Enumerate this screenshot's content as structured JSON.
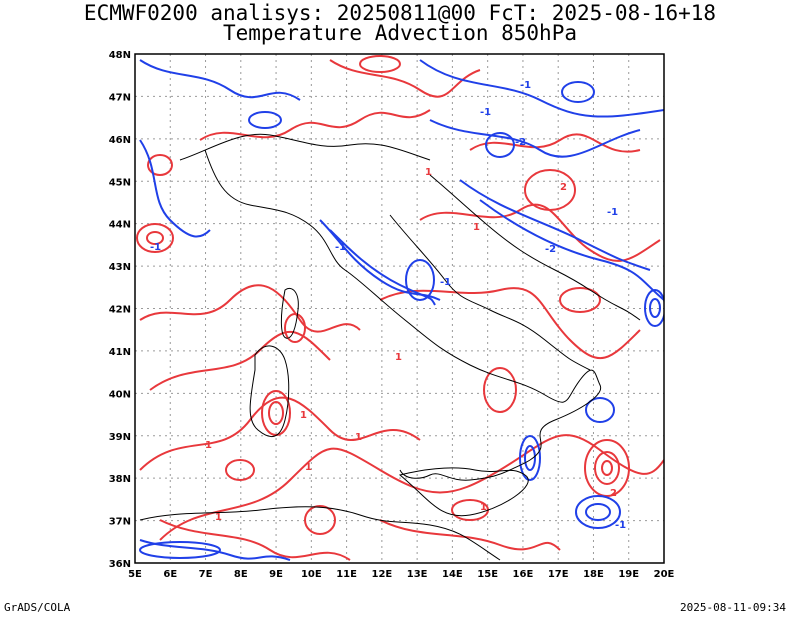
{
  "title_line_1": "ECMWF0200 analisys: 20250811@00 FcT: 2025-08-16+18",
  "title_line_2": "Temperature Advection 850hPa",
  "footer_left": "GrADS/COLA",
  "footer_right": "2025-08-11-09:34",
  "map": {
    "lon_labels": [
      "5E",
      "6E",
      "7E",
      "8E",
      "9E",
      "10E",
      "11E",
      "12E",
      "13E",
      "14E",
      "15E",
      "16E",
      "17E",
      "18E",
      "19E",
      "20E"
    ],
    "lat_labels": [
      "48N",
      "47N",
      "46N",
      "45N",
      "44N",
      "43N",
      "42N",
      "41N",
      "40N",
      "39N",
      "38N",
      "37N",
      "36N"
    ],
    "lon_range": [
      5,
      20
    ],
    "lat_range": [
      36,
      48
    ],
    "colors": {
      "warm": "#e8383c",
      "cold": "#2040e8",
      "border": "#000000",
      "grid": "#9a9a9a"
    },
    "contour_labels": [
      "1",
      "-1",
      "2",
      "-2",
      "1",
      "-1",
      "1",
      "-1",
      "2",
      "1",
      "-1",
      "1",
      "-1",
      "1",
      "1",
      "-1",
      "1",
      "1",
      "-1",
      "-2"
    ]
  }
}
